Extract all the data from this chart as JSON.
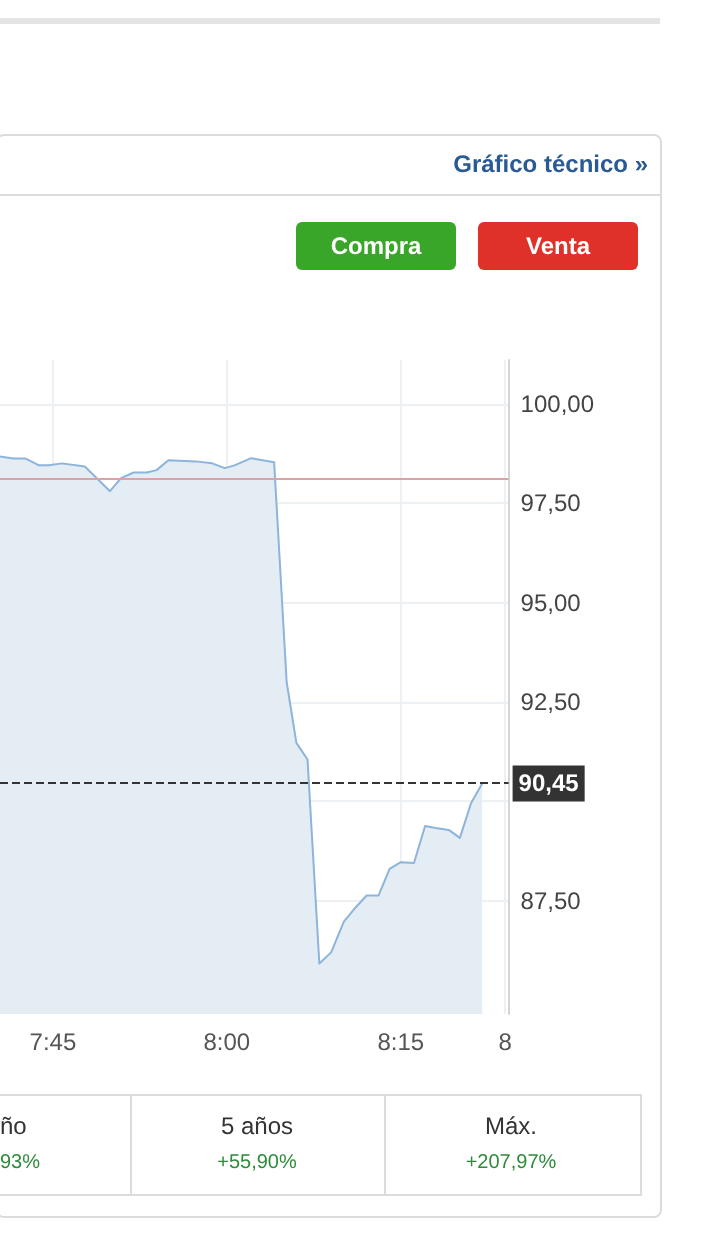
{
  "chart_data": {
    "type": "area",
    "x": [
      7.674,
      7.693,
      7.711,
      7.73,
      7.744,
      7.763,
      7.796,
      7.832,
      7.848,
      7.866,
      7.885,
      7.899,
      7.916,
      7.955,
      7.979,
      7.997,
      8.011,
      8.035,
      8.068,
      8.086,
      8.1,
      8.116,
      8.133,
      8.15,
      8.168,
      8.185,
      8.201,
      8.218,
      8.234,
      8.25,
      8.269,
      8.285,
      8.3,
      8.319,
      8.335,
      8.351,
      8.367
    ],
    "series": [
      {
        "color": "#8db4da",
        "values": [
          98.67,
          98.62,
          98.62,
          98.45,
          98.45,
          98.5,
          98.42,
          97.8,
          98.13,
          98.27,
          98.27,
          98.33,
          98.58,
          98.55,
          98.5,
          98.38,
          98.45,
          98.63,
          98.53,
          93.0,
          91.47,
          91.05,
          85.92,
          86.2,
          86.97,
          87.33,
          87.63,
          87.63,
          88.3,
          88.47,
          88.45,
          89.38,
          89.33,
          89.28,
          89.08,
          89.95,
          90.45
        ]
      }
    ],
    "xlim": [
      7.674,
      8.405
    ],
    "xticks": [
      {
        "value": 7.75,
        "label": "7:45"
      },
      {
        "value": 8,
        "label": "8:00"
      },
      {
        "value": 8.25,
        "label": "8:15"
      },
      {
        "value": 8.4,
        "label": "8"
      }
    ],
    "ylim": [
      84.65,
      101.1
    ],
    "yticks": [
      {
        "value": 87.5,
        "label": "87,50"
      },
      {
        "value": 90,
        "label": null
      },
      {
        "value": 92.5,
        "label": "92,50"
      },
      {
        "value": 95,
        "label": "95,00"
      },
      {
        "value": 97.5,
        "label": "97,50"
      },
      {
        "value": 100,
        "label": "100,00"
      }
    ],
    "ref_lines": [
      {
        "axis": "y",
        "value": 98.13,
        "color": "#d9a3a8"
      },
      {
        "axis": "y",
        "value": 90.45,
        "label": "90,45",
        "color": "#333333",
        "line_style": "dashed"
      }
    ],
    "grid": true,
    "annotations": [
      "Gráfico técnico »",
      "Compra",
      "Venta",
      "ño",
      "93%",
      "5 años",
      "+55,90%",
      "Máx.",
      "+207,97%"
    ]
  }
}
